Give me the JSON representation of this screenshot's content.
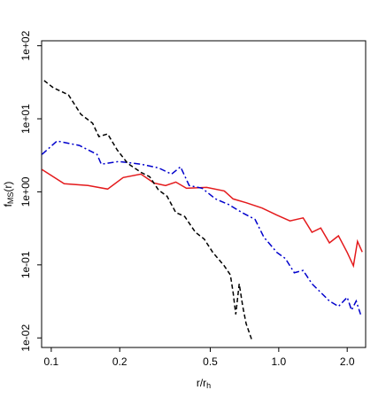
{
  "chart_data": {
    "type": "line",
    "log_x": true,
    "log_y": true,
    "xlabel_parts": [
      "r/r",
      "h"
    ],
    "ylabel_parts": [
      "f",
      "MS",
      "(r)"
    ],
    "xlim": [
      0.0907,
      2.41
    ],
    "ylim": [
      0.0074,
      117
    ],
    "xticks": [
      0.1,
      0.2,
      0.5,
      {
        "value": 1,
        "label": "1.0"
      },
      {
        "value": 2,
        "label": "2.0"
      }
    ],
    "yticks": [
      {
        "value": 0.01,
        "label": "1e-02"
      },
      {
        "value": 0.1,
        "label": "1e-01"
      },
      {
        "value": 1,
        "label": "1e+00"
      },
      {
        "value": 10,
        "label": "1e+01"
      },
      {
        "value": 100,
        "label": "1e+02"
      }
    ],
    "series": [
      {
        "color": "#e41a1c",
        "style": "solid",
        "x": [
          0.091,
          0.114,
          0.145,
          0.177,
          0.207,
          0.248,
          0.283,
          0.318,
          0.353,
          0.393,
          0.482,
          0.576,
          0.63,
          0.719,
          0.845,
          0.982,
          1.12,
          1.28,
          1.4,
          1.53,
          1.67,
          1.83,
          2.0,
          2.13,
          2.22,
          2.33
        ],
        "values": [
          2.02,
          1.29,
          1.22,
          1.09,
          1.57,
          1.75,
          1.32,
          1.22,
          1.36,
          1.12,
          1.15,
          1.03,
          0.8,
          0.71,
          0.6,
          0.48,
          0.4,
          0.44,
          0.28,
          0.32,
          0.2,
          0.25,
          0.148,
          0.097,
          0.21,
          0.15
        ]
      },
      {
        "color": "#0000cc",
        "style": "dashdot",
        "x": [
          0.091,
          0.106,
          0.133,
          0.159,
          0.166,
          0.198,
          0.248,
          0.296,
          0.338,
          0.37,
          0.404,
          0.461,
          0.527,
          0.603,
          0.689,
          0.787,
          0.86,
          0.982,
          1.07,
          1.17,
          1.28,
          1.4,
          1.53,
          1.67,
          1.83,
          2.0,
          2.09,
          2.19,
          2.29
        ],
        "values": [
          3.25,
          4.96,
          4.31,
          3.25,
          2.39,
          2.6,
          2.39,
          2.13,
          1.75,
          2.2,
          1.22,
          1.12,
          0.8,
          0.67,
          0.52,
          0.42,
          0.24,
          0.148,
          0.122,
          0.078,
          0.084,
          0.055,
          0.042,
          0.032,
          0.027,
          0.036,
          0.024,
          0.032,
          0.021
        ]
      },
      {
        "color": "#000000",
        "style": "dashed",
        "x": [
          0.093,
          0.102,
          0.119,
          0.135,
          0.152,
          0.162,
          0.177,
          0.195,
          0.217,
          0.248,
          0.271,
          0.296,
          0.323,
          0.353,
          0.386,
          0.43,
          0.47,
          0.513,
          0.576,
          0.613,
          0.63,
          0.647,
          0.67,
          0.695,
          0.719,
          0.766
        ],
        "values": [
          33.4,
          26.7,
          21.3,
          11.5,
          8.7,
          5.7,
          6.2,
          3.74,
          2.45,
          1.85,
          1.61,
          1.06,
          0.87,
          0.52,
          0.46,
          0.28,
          0.226,
          0.148,
          0.097,
          0.073,
          0.042,
          0.021,
          0.055,
          0.027,
          0.0157,
          0.0089
        ]
      }
    ]
  }
}
